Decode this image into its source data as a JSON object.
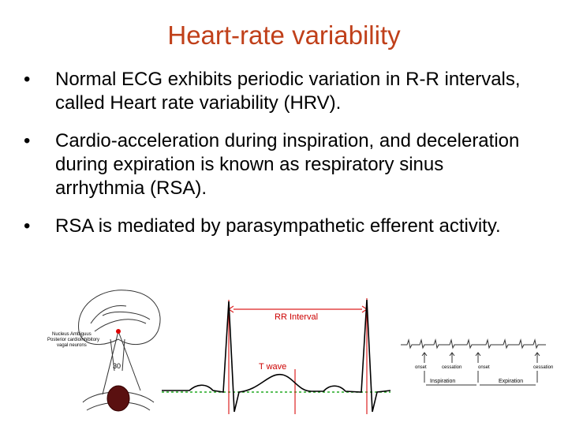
{
  "title": "Heart-rate variability",
  "bullets": [
    "Normal ECG exhibits periodic variation in R-R intervals, called Heart rate variability (HRV).",
    "Cardio-acceleration during inspiration, and deceleration during expiration is known as respiratory sinus arrhythmia (RSA).",
    "RSA is mediated by parasympathetic efferent activity."
  ],
  "figures": {
    "brain": {
      "labels": [
        "Nucleus Ambiguus",
        "Posterior cardioinhibitory",
        "vagal neurons"
      ],
      "number": "30"
    },
    "ecg": {
      "rr_label": "RR Interval",
      "t_label": "T wave"
    },
    "respiration": {
      "markers": [
        "onset",
        "cessation",
        "onset",
        "cessation"
      ],
      "phases": [
        "Inspiration",
        "Expiration"
      ]
    }
  }
}
